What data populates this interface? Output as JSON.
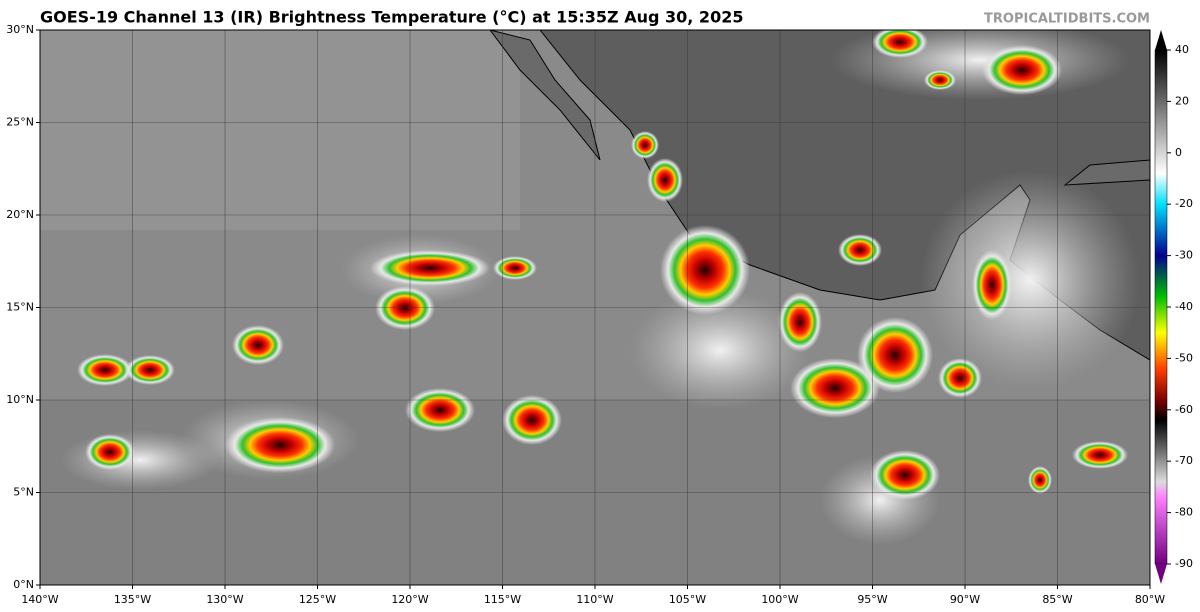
{
  "header": {
    "title": "GOES-19 Channel 13 (IR) Brightness Temperature (°C) at 15:35Z Aug 30, 2025",
    "watermark": "TROPICALTIDBITS.COM"
  },
  "map": {
    "lon_ticks": [
      "140°W",
      "135°W",
      "130°W",
      "125°W",
      "120°W",
      "115°W",
      "110°W",
      "105°W",
      "100°W",
      "95°W",
      "90°W",
      "85°W",
      "80°W"
    ],
    "lat_ticks": [
      "0°N",
      "5°N",
      "10°N",
      "15°N",
      "20°N",
      "25°N",
      "30°N"
    ]
  },
  "colorbar": {
    "ticks": [
      40,
      20,
      0,
      -20,
      -30,
      -40,
      -50,
      -60,
      -70,
      -80,
      -90
    ]
  }
}
